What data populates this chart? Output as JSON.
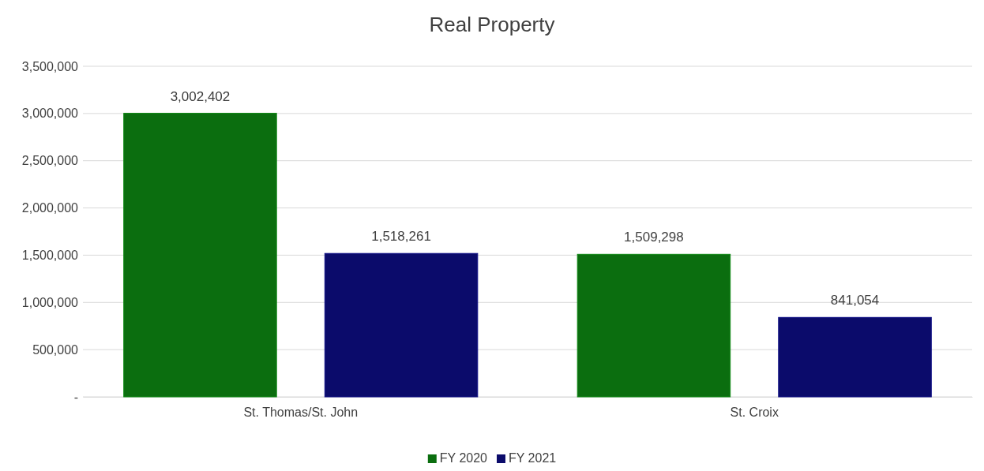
{
  "chart_data": {
    "type": "bar",
    "title": "Real Property",
    "categories": [
      "St. Thomas/St. John",
      "St. Croix"
    ],
    "series": [
      {
        "name": "FY 2020",
        "color": "#0b6e0f",
        "values": [
          3002402,
          1509298
        ],
        "value_labels": [
          "3,002,402",
          "1,509,298"
        ]
      },
      {
        "name": "FY 2021",
        "color": "#0b0b6b",
        "values": [
          1518261,
          841054
        ],
        "value_labels": [
          "1,518,261",
          "841,054"
        ]
      }
    ],
    "ylim": [
      0,
      3500000
    ],
    "yticks": [
      {
        "value": 0,
        "label": "-"
      },
      {
        "value": 500000,
        "label": "500,000"
      },
      {
        "value": 1000000,
        "label": "1,000,000"
      },
      {
        "value": 1500000,
        "label": "1,500,000"
      },
      {
        "value": 2000000,
        "label": "2,000,000"
      },
      {
        "value": 2500000,
        "label": "2,500,000"
      },
      {
        "value": 3000000,
        "label": "3,000,000"
      },
      {
        "value": 3500000,
        "label": "3,500,000"
      }
    ],
    "grid": "y",
    "legend": "bottom"
  }
}
